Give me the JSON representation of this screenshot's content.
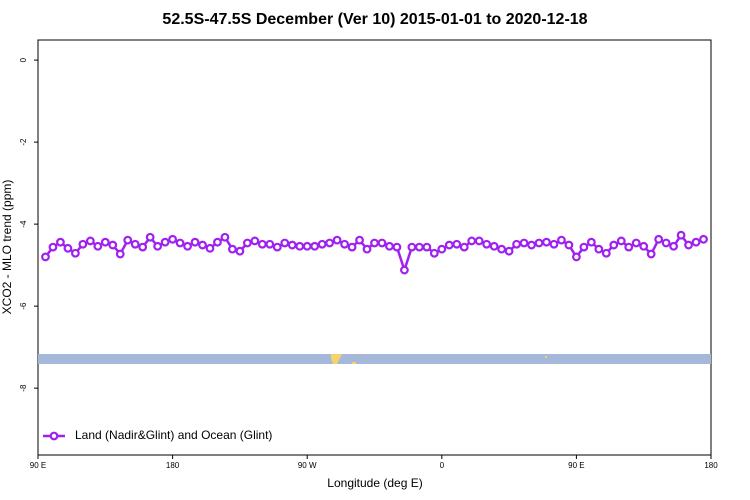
{
  "chart_data": {
    "type": "line",
    "title": "52.5S-47.5S December (Ver 10)   2015-01-01 to 2020-12-18",
    "x_label": "Longitude (deg E)",
    "y_label": "XCO2 - MLO trend (ppm)",
    "x": [
      95,
      100,
      105,
      110,
      115,
      120,
      125,
      130,
      135,
      140,
      145,
      150,
      155,
      160,
      165,
      170,
      175,
      180,
      185,
      190,
      195,
      200,
      205,
      210,
      215,
      220,
      225,
      230,
      235,
      240,
      245,
      250,
      255,
      260,
      265,
      270,
      275,
      280,
      285,
      290,
      295,
      300,
      305,
      310,
      315,
      320,
      325,
      330,
      335,
      340,
      345,
      350,
      355,
      360,
      365,
      370,
      375,
      380,
      385,
      390,
      395,
      400,
      405,
      410,
      415,
      420,
      425,
      430,
      435,
      440,
      445,
      450,
      455,
      460,
      465,
      470,
      475,
      480,
      485,
      490,
      495,
      500,
      505,
      510,
      515,
      520,
      525,
      530,
      535
    ],
    "series": [
      {
        "name": "Land (Nadir&Glint) and Ocean (Glint)",
        "color": "#a020f0",
        "values": [
          -4.8,
          -4.56,
          -4.44,
          -4.59,
          -4.71,
          -4.49,
          -4.41,
          -4.54,
          -4.44,
          -4.51,
          -4.73,
          -4.39,
          -4.49,
          -4.56,
          -4.32,
          -4.54,
          -4.44,
          -4.37,
          -4.46,
          -4.54,
          -4.44,
          -4.51,
          -4.59,
          -4.44,
          -4.32,
          -4.61,
          -4.66,
          -4.46,
          -4.41,
          -4.49,
          -4.49,
          -4.56,
          -4.46,
          -4.51,
          -4.54,
          -4.54,
          -4.54,
          -4.49,
          -4.46,
          -4.39,
          -4.49,
          -4.56,
          -4.39,
          -4.61,
          -4.46,
          -4.46,
          -4.54,
          -4.56,
          -5.12,
          -4.56,
          -4.56,
          -4.56,
          -4.71,
          -4.61,
          -4.51,
          -4.49,
          -4.56,
          -4.41,
          -4.41,
          -4.49,
          -4.54,
          -4.61,
          -4.66,
          -4.49,
          -4.46,
          -4.51,
          -4.46,
          -4.44,
          -4.49,
          -4.39,
          -4.51,
          -4.8,
          -4.56,
          -4.44,
          -4.61,
          -4.71,
          -4.51,
          -4.41,
          -4.56,
          -4.46,
          -4.54,
          -4.73,
          -4.37,
          -4.46,
          -4.54,
          -4.27,
          -4.51,
          -4.44,
          -4.37
        ]
      }
    ],
    "xlim": [
      90,
      540
    ],
    "xticks": [
      {
        "value": 90,
        "label": "90 E"
      },
      180,
      {
        "value": 270,
        "label": "90 W"
      },
      {
        "value": 360,
        "label": "0"
      },
      {
        "value": 450,
        "label": "90 E"
      },
      {
        "value": 540,
        "label": "180"
      }
    ],
    "ylim": [
      -9.63,
      0.49
    ],
    "yticks": [
      0,
      -2,
      -4,
      -6,
      -8
    ],
    "legend": "bottom-left"
  }
}
